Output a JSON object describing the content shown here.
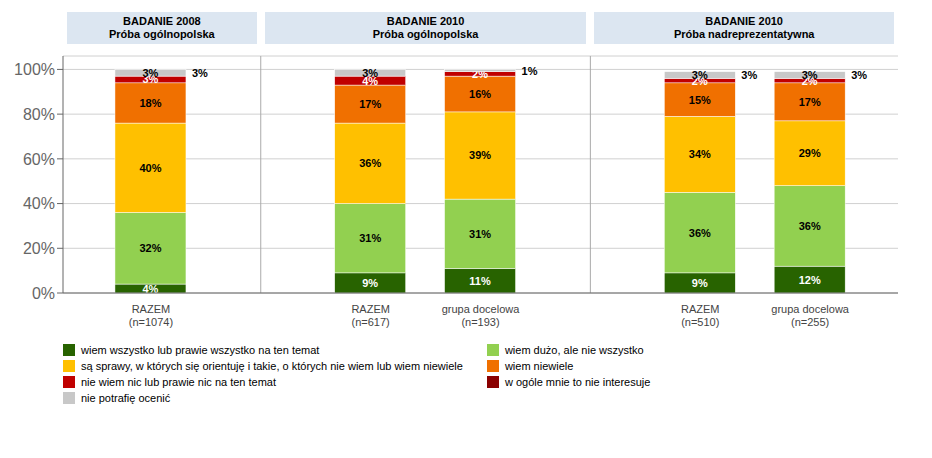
{
  "chart_data": {
    "type": "bar",
    "stacked": true,
    "data_labels": true,
    "grid": true,
    "legend": "bottom",
    "categories": [
      "RAZEM\n(n=1074)",
      "RAZEM\n(n=617)",
      "grupa docelowa\n(n=193)",
      "RAZEM\n(n=510)",
      "grupa docelowa\n(n=255)"
    ],
    "series": [
      {
        "name": "wiem wszystko lub prawie wszystko na ten temat",
        "color": "#286300",
        "values": [
          4,
          9,
          11,
          9,
          12
        ],
        "value_labels": [
          "4%",
          "9%",
          "11%",
          "9%",
          "12%"
        ]
      },
      {
        "name": "wiem dużo, ale nie wszystko",
        "color": "#92d050",
        "values": [
          32,
          31,
          31,
          36,
          36
        ],
        "value_labels": [
          "32%",
          "31%",
          "31%",
          "36%",
          "36%"
        ]
      },
      {
        "name": "są sprawy, w których się orientuję i takie, o których nie wiem lub wiem niewiele",
        "color": "#ffc000",
        "values": [
          40,
          36,
          39,
          34,
          29
        ],
        "value_labels": [
          "40%",
          "36%",
          "39%",
          "34%",
          "29%"
        ]
      },
      {
        "name": "wiem niewiele",
        "color": "#f07000",
        "values": [
          18,
          17,
          16,
          15,
          17
        ],
        "value_labels": [
          "18%",
          "17%",
          "16%",
          "15%",
          "17%"
        ]
      },
      {
        "name": "nie wiem nic lub prawie nic na ten temat",
        "color": "#c00000",
        "values": [
          3,
          4,
          2,
          2,
          2
        ],
        "value_labels": [
          "3%",
          "4%",
          "2%",
          "2%",
          "2%"
        ]
      },
      {
        "name": "w ogóle mnie to nie interesuje",
        "color": "#8b0000",
        "values": [
          null,
          null,
          null,
          null,
          null
        ]
      },
      {
        "name": "nie potrafię ocenić",
        "color": "#c8c8c8",
        "values": [
          3,
          3,
          1,
          3,
          3
        ],
        "value_labels": [
          "3%",
          "3%",
          null,
          "3%",
          "3%"
        ],
        "outside_labels": [
          "3%",
          null,
          "1%",
          "3%",
          "3%"
        ]
      }
    ],
    "ylim": [
      0,
      106
    ],
    "yticks": [
      {
        "value": 0,
        "label": "0%"
      },
      {
        "value": 20,
        "label": "20%"
      },
      {
        "value": 40,
        "label": "40%"
      },
      {
        "value": 60,
        "label": "60%"
      },
      {
        "value": 80,
        "label": "80%"
      },
      {
        "value": 100,
        "label": "100%"
      }
    ],
    "groups": [
      {
        "label": "BADANIE 2008\nPróba ogólnopolska",
        "categories": [
          "RAZEM\n(n=1074)"
        ],
        "color": "#dce6f1"
      },
      {
        "label": "BADANIE 2010\nPróba ogólnopolska",
        "categories": [
          "RAZEM\n(n=617)",
          "grupa docelowa\n(n=193)"
        ],
        "color": "#dce6f1"
      },
      {
        "label": "BADANIE 2010\nPróba nadreprezentatywna",
        "categories": [
          "RAZEM\n(n=510)",
          "grupa docelowa\n(n=255)"
        ],
        "color": "#dce6f1"
      }
    ]
  }
}
